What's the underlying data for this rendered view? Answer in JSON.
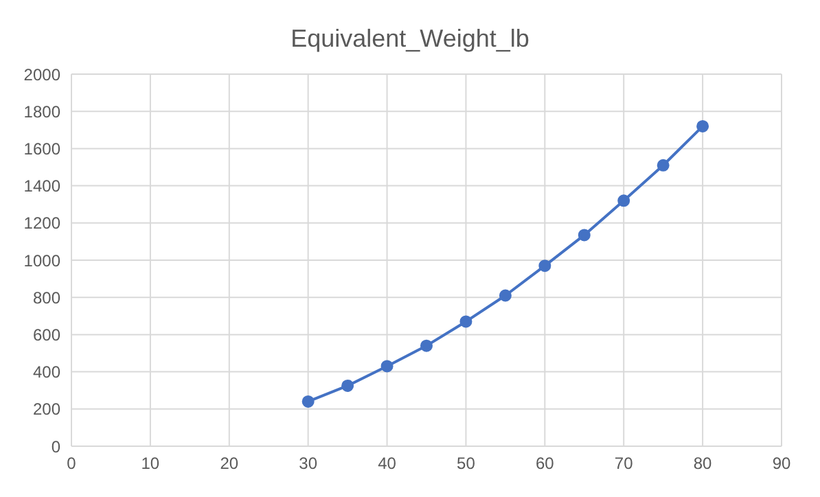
{
  "chart_data": {
    "type": "line",
    "title": "Equivalent_Weight_lb",
    "x": [
      30,
      35,
      40,
      45,
      50,
      55,
      60,
      65,
      70,
      75,
      80
    ],
    "series": [
      {
        "color": "#4472c4",
        "values": [
          240,
          325,
          430,
          540,
          670,
          810,
          970,
          1135,
          1320,
          1510,
          1720
        ]
      }
    ],
    "xlim": [
      0,
      90
    ],
    "xticks": [
      0,
      10,
      20,
      30,
      40,
      50,
      60,
      70,
      80,
      90
    ],
    "ylim": [
      0,
      2000
    ],
    "yticks": [
      0,
      200,
      400,
      600,
      800,
      1000,
      1200,
      1400,
      1600,
      1800,
      2000
    ],
    "grid": true,
    "marker": "circle"
  }
}
